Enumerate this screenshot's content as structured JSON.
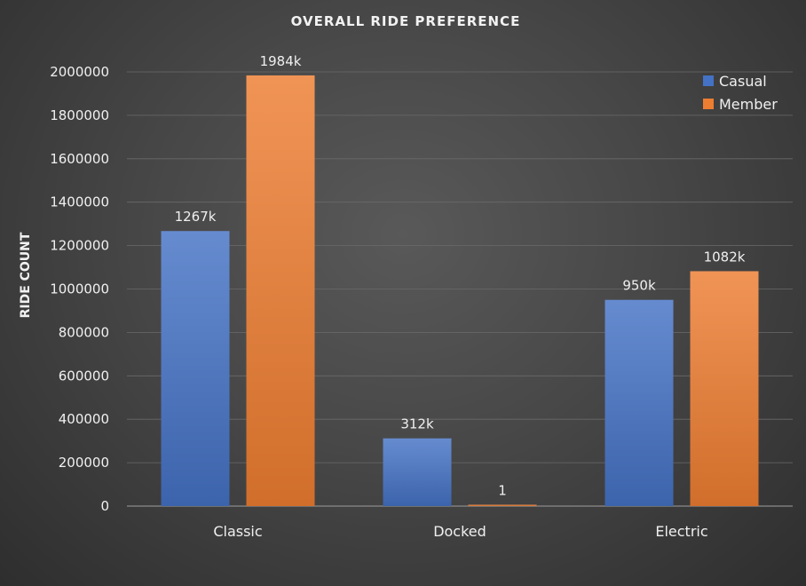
{
  "chart_data": {
    "type": "bar",
    "title": "OVERALL  RIDE  PREFERENCE",
    "xlabel": "",
    "ylabel": "RIDE COUNT",
    "categories": [
      "Classic",
      "Docked",
      "Electric"
    ],
    "series": [
      {
        "name": "Casual",
        "color": "#4472c4",
        "values": [
          1267000,
          312000,
          950000
        ],
        "labels": [
          "1267k",
          "312k",
          "950k"
        ]
      },
      {
        "name": "Member",
        "color": "#ed7d31",
        "values": [
          1984000,
          1,
          1082000
        ],
        "labels": [
          "1984k",
          "1",
          "1082k"
        ]
      }
    ],
    "ylim": [
      0,
      2000000
    ],
    "yticks": [
      "0",
      "200000",
      "400000",
      "600000",
      "800000",
      "1000000",
      "1200000",
      "1400000",
      "1600000",
      "1800000",
      "2000000"
    ],
    "grid": true,
    "legend": "top-right"
  }
}
